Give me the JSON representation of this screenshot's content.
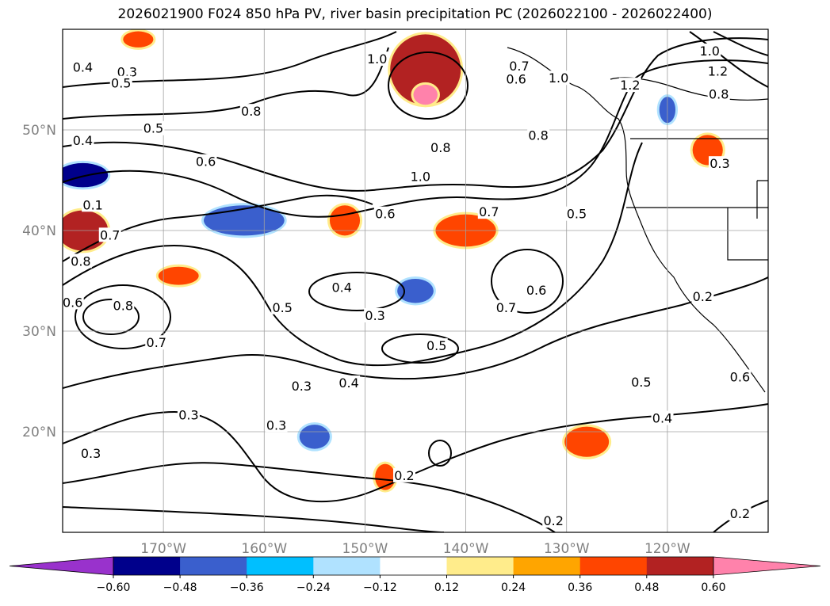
{
  "title": "2026021900 F024 850 hPa PV, river basin precipitation PC (2026022100 - 2026022400)",
  "map": {
    "projection": "plate-carree",
    "lon_range": [
      -180,
      -110
    ],
    "lat_range": [
      10,
      60
    ],
    "gridlines": true,
    "coastlines": true,
    "borders": true
  },
  "axes": {
    "lat_ticks": [
      {
        "value": 50,
        "label": "50°N"
      },
      {
        "value": 40,
        "label": "40°N"
      },
      {
        "value": 30,
        "label": "30°N"
      },
      {
        "value": 20,
        "label": "20°N"
      }
    ],
    "lon_ticks": [
      {
        "value": -170,
        "label": "170°W"
      },
      {
        "value": -160,
        "label": "160°W"
      },
      {
        "value": -150,
        "label": "150°W"
      },
      {
        "value": -140,
        "label": "140°W"
      },
      {
        "value": -130,
        "label": "130°W"
      },
      {
        "value": -120,
        "label": "120°W"
      }
    ]
  },
  "colorbar": {
    "extend": "both",
    "colors": [
      "#9932cc",
      "#00008b",
      "#3a5fcd",
      "#00bfff",
      "#b0e2ff",
      "#ffffff",
      "#ffec8b",
      "#ffa500",
      "#ff4500",
      "#b22222",
      "#ff82ab"
    ],
    "tick_labels": [
      "−0.60",
      "−0.48",
      "−0.36",
      "−0.24",
      "−0.12",
      "0.12",
      "0.24",
      "0.36",
      "0.48",
      "0.60"
    ]
  },
  "contour_labels": [
    {
      "text": "0.4",
      "lon": -178.0,
      "lat": 56.2
    },
    {
      "text": "0.3",
      "lon": -173.6,
      "lat": 55.7
    },
    {
      "text": "0.5",
      "lon": -174.2,
      "lat": 54.6
    },
    {
      "text": "1.0",
      "lon": -148.8,
      "lat": 57.0
    },
    {
      "text": "0.7",
      "lon": -134.7,
      "lat": 56.3
    },
    {
      "text": "1.0",
      "lon": -130.8,
      "lat": 55.1
    },
    {
      "text": "1.2",
      "lon": -123.7,
      "lat": 54.4
    },
    {
      "text": "1.0",
      "lon": -115.8,
      "lat": 57.8
    },
    {
      "text": "1.2",
      "lon": -115.0,
      "lat": 55.8
    },
    {
      "text": "0.8",
      "lon": -114.9,
      "lat": 53.5
    },
    {
      "text": "0.6",
      "lon": -135.0,
      "lat": 55.0
    },
    {
      "text": "0.8",
      "lon": -161.3,
      "lat": 51.8
    },
    {
      "text": "0.8",
      "lon": -142.5,
      "lat": 48.2
    },
    {
      "text": "0.8",
      "lon": -132.8,
      "lat": 49.4
    },
    {
      "text": "0.4",
      "lon": -178.0,
      "lat": 48.9
    },
    {
      "text": "0.5",
      "lon": -171.0,
      "lat": 50.1
    },
    {
      "text": "0.6",
      "lon": -165.8,
      "lat": 46.8
    },
    {
      "text": "0.3",
      "lon": -114.8,
      "lat": 46.6
    },
    {
      "text": "1.0",
      "lon": -144.5,
      "lat": 45.3
    },
    {
      "text": "0.6",
      "lon": -148.0,
      "lat": 41.6
    },
    {
      "text": "0.7",
      "lon": -137.7,
      "lat": 41.8
    },
    {
      "text": "0.5",
      "lon": -129.0,
      "lat": 41.6
    },
    {
      "text": "0.1",
      "lon": -177.0,
      "lat": 42.5
    },
    {
      "text": "0.7",
      "lon": -175.3,
      "lat": 39.5
    },
    {
      "text": "0.8",
      "lon": -178.2,
      "lat": 36.9
    },
    {
      "text": "0.4",
      "lon": -152.3,
      "lat": 34.3
    },
    {
      "text": "0.5",
      "lon": -158.2,
      "lat": 32.3
    },
    {
      "text": "0.3",
      "lon": -149.0,
      "lat": 31.5
    },
    {
      "text": "0.7",
      "lon": -136.0,
      "lat": 32.3
    },
    {
      "text": "0.6",
      "lon": -133.0,
      "lat": 34.0
    },
    {
      "text": "0.6",
      "lon": -179.0,
      "lat": 32.8
    },
    {
      "text": "0.8",
      "lon": -174.0,
      "lat": 32.5
    },
    {
      "text": "0.7",
      "lon": -170.7,
      "lat": 28.8
    },
    {
      "text": "0.2",
      "lon": -116.5,
      "lat": 33.4
    },
    {
      "text": "0.5",
      "lon": -142.9,
      "lat": 28.5
    },
    {
      "text": "0.6",
      "lon": -112.8,
      "lat": 25.4
    },
    {
      "text": "0.5",
      "lon": -122.6,
      "lat": 24.9
    },
    {
      "text": "0.4",
      "lon": -151.6,
      "lat": 24.8
    },
    {
      "text": "0.3",
      "lon": -156.3,
      "lat": 24.5
    },
    {
      "text": "0.3",
      "lon": -167.5,
      "lat": 21.6
    },
    {
      "text": "0.3",
      "lon": -158.8,
      "lat": 20.6
    },
    {
      "text": "0.4",
      "lon": -120.5,
      "lat": 21.3
    },
    {
      "text": "0.3",
      "lon": -177.2,
      "lat": 17.8
    },
    {
      "text": "0.2",
      "lon": -146.1,
      "lat": 15.6
    },
    {
      "text": "0.2",
      "lon": -131.3,
      "lat": 11.1
    },
    {
      "text": "0.2",
      "lon": -112.8,
      "lat": 11.8
    }
  ],
  "anomaly_patches": [
    {
      "class": "0.48",
      "lon": -144,
      "lat": 56,
      "rx": 3.5,
      "ry": 3.5
    },
    {
      "class": "0.36",
      "lon": -152,
      "lat": 41,
      "rx": 1.5,
      "ry": 1.5
    },
    {
      "class": "0.48",
      "lon": -178,
      "lat": 40,
      "rx": 2.5,
      "ry": 2.0
    },
    {
      "class": "-0.48",
      "lon": -178,
      "lat": 45.5,
      "rx": 2.5,
      "ry": 1.2
    },
    {
      "class": "-0.36",
      "lon": -162,
      "lat": 41,
      "rx": 4.0,
      "ry": 1.5
    },
    {
      "class": "0.36",
      "lon": -140,
      "lat": 40,
      "rx": 3.0,
      "ry": 1.6
    },
    {
      "class": "-0.36",
      "lon": -145,
      "lat": 34,
      "rx": 1.8,
      "ry": 1.2
    },
    {
      "class": "0.36",
      "lon": -128,
      "lat": 19,
      "rx": 2.2,
      "ry": 1.5
    },
    {
      "class": "0.36",
      "lon": -148,
      "lat": 15.5,
      "rx": 1.0,
      "ry": 1.3
    },
    {
      "class": "-0.36",
      "lon": -155,
      "lat": 19.5,
      "rx": 1.5,
      "ry": 1.2
    },
    {
      "class": "0.36",
      "lon": -116,
      "lat": 48,
      "rx": 1.5,
      "ry": 1.5
    },
    {
      "class": "-0.36",
      "lon": -120,
      "lat": 52,
      "rx": 0.8,
      "ry": 1.3
    },
    {
      "class": "0.60",
      "lon": -144,
      "lat": 53.5,
      "rx": 1.2,
      "ry": 1.0
    },
    {
      "class": "0.36",
      "lon": -168.5,
      "lat": 35.5,
      "rx": 2.0,
      "ry": 0.9
    },
    {
      "class": "0.36",
      "lon": -172.5,
      "lat": 59.0,
      "rx": 1.5,
      "ry": 0.8
    }
  ]
}
